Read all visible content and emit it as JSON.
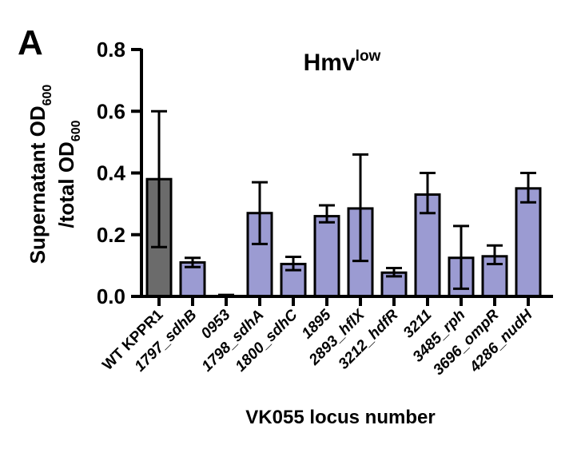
{
  "panel_label": "A",
  "chart_data": {
    "type": "bar",
    "title": "Hmv",
    "title_superscript": "low",
    "xlabel": "VK055 locus number",
    "ylabel_line1": "Supernatant OD",
    "ylabel_line1_sub": "600",
    "ylabel_line2": "/total OD",
    "ylabel_line2_sub": "600",
    "ylim": [
      0,
      0.8
    ],
    "yticks": [
      "0.0",
      "0.2",
      "0.4",
      "0.6",
      "0.8"
    ],
    "grid": false,
    "categories": [
      "WT KPPR1",
      "1797_sdhB",
      "0953",
      "1798_sdhA",
      "1800_sdhC",
      "1895",
      "2893_hflX",
      "3212_hdfR",
      "3211",
      "3485_rph",
      "3696_ompR",
      "4286_nudH"
    ],
    "category_italic": [
      false,
      true,
      true,
      true,
      true,
      true,
      true,
      true,
      true,
      true,
      true,
      true
    ],
    "values": [
      0.38,
      0.11,
      0.0,
      0.27,
      0.105,
      0.26,
      0.285,
      0.077,
      0.33,
      0.125,
      0.13,
      0.35
    ],
    "error_low": [
      0.16,
      0.095,
      0.0,
      0.17,
      0.085,
      0.24,
      0.115,
      0.065,
      0.27,
      0.025,
      0.105,
      0.305
    ],
    "error_high": [
      0.6,
      0.125,
      0.005,
      0.37,
      0.128,
      0.295,
      0.46,
      0.092,
      0.4,
      0.228,
      0.165,
      0.4
    ],
    "bar_colors": [
      "#6b6b6b",
      "#9b9bd2",
      "#9b9bd2",
      "#9b9bd2",
      "#9b9bd2",
      "#9b9bd2",
      "#9b9bd2",
      "#9b9bd2",
      "#9b9bd2",
      "#9b9bd2",
      "#9b9bd2",
      "#9b9bd2"
    ]
  }
}
